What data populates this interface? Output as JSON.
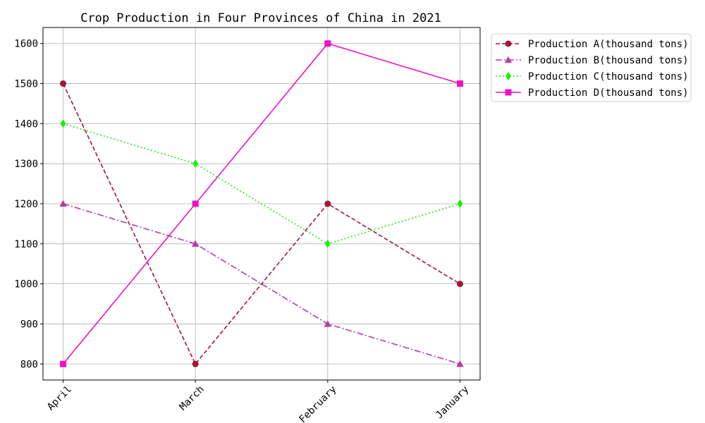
{
  "chart_data": {
    "type": "line",
    "title": "Crop Production in Four Provinces of China in 2021",
    "xlabel": "",
    "ylabel": "",
    "categories": [
      "April",
      "March",
      "February",
      "January"
    ],
    "ylim": [
      760,
      1640
    ],
    "yticks": [
      800,
      900,
      1000,
      1100,
      1200,
      1300,
      1400,
      1500,
      1600
    ],
    "grid": true,
    "legend_position": "outside-top-right",
    "series": [
      {
        "name": "Production A(thousand tons)",
        "values": [
          1500,
          800,
          1200,
          1000
        ],
        "color": "#a0173a",
        "linestyle": "dashed",
        "marker": "circle"
      },
      {
        "name": "Production B(thousand tons)",
        "values": [
          1200,
          1100,
          900,
          800
        ],
        "color": "#b33ca8",
        "linestyle": "dashdot",
        "marker": "triangle"
      },
      {
        "name": "Production C(thousand tons)",
        "values": [
          1400,
          1300,
          1100,
          1200
        ],
        "color": "#14f00f",
        "linestyle": "dotted",
        "marker": "diamond"
      },
      {
        "name": "Production D(thousand tons)",
        "values": [
          800,
          1200,
          1600,
          1500
        ],
        "color": "#f00fc8",
        "linestyle": "solid",
        "marker": "square"
      }
    ]
  }
}
